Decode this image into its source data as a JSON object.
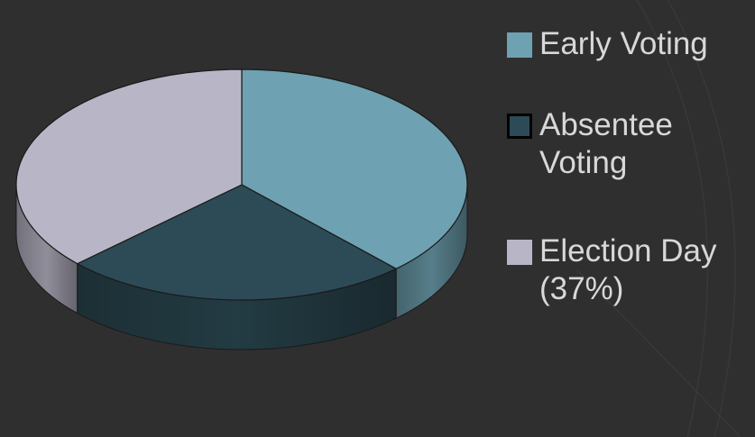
{
  "slide": {
    "background": "#2f2f2f"
  },
  "chart_data": {
    "type": "pie",
    "style": "3d",
    "title": "",
    "legend_position": "right",
    "categories": [
      "Early Voting",
      "Absentee Voting",
      "Election Day (37%)"
    ],
    "values": [
      38,
      25,
      37
    ],
    "units": "percent",
    "start_angle_deg": 270,
    "colors": [
      "#6ea1b1",
      "#2d4b56",
      "#b8b6c6"
    ],
    "edge_color": "#1a1a1a",
    "legend": [
      {
        "label": "Early Voting",
        "color": "#6ea1b1",
        "border": "#6ea1b1"
      },
      {
        "label": "Absentee Voting",
        "color": "#2d4b56",
        "border": "#000000"
      },
      {
        "label": "Election Day (37%)",
        "color": "#b8b6c6",
        "border": "#b8b6c6"
      }
    ]
  }
}
